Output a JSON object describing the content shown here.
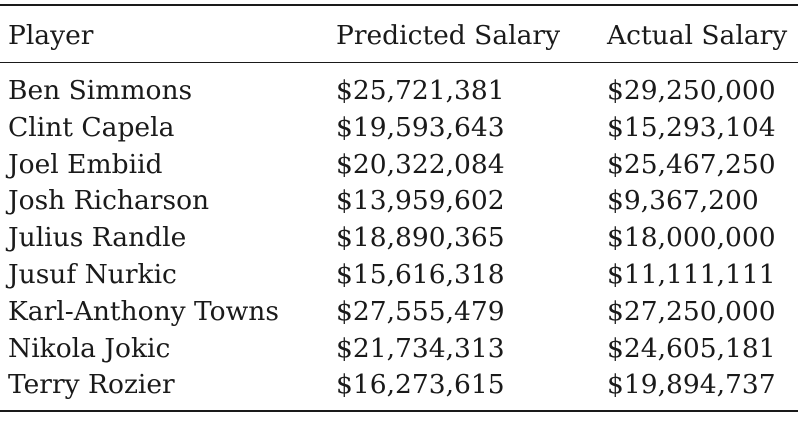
{
  "table": {
    "headers": [
      "Player",
      "Predicted Salary",
      "Actual Salary"
    ],
    "rows": [
      [
        "Ben Simmons",
        "$25,721,381",
        "$29,250,000"
      ],
      [
        "Clint Capela",
        "$19,593,643",
        "$15,293,104"
      ],
      [
        "Joel Embiid",
        "$20,322,084",
        "$25,467,250"
      ],
      [
        "Josh Richarson",
        "$13,959,602",
        "$9,367,200"
      ],
      [
        "Julius Randle",
        "$18,890,365",
        "$18,000,000"
      ],
      [
        "Jusuf Nurkic",
        "$15,616,318",
        "$11,111,111"
      ],
      [
        "Karl-Anthony Towns",
        "$27,555,479",
        "$27,250,000"
      ],
      [
        "Nikola Jokic",
        "$21,734,313",
        "$24,605,181"
      ],
      [
        "Terry Rozier",
        "$16,273,615",
        "$19,894,737"
      ]
    ]
  }
}
